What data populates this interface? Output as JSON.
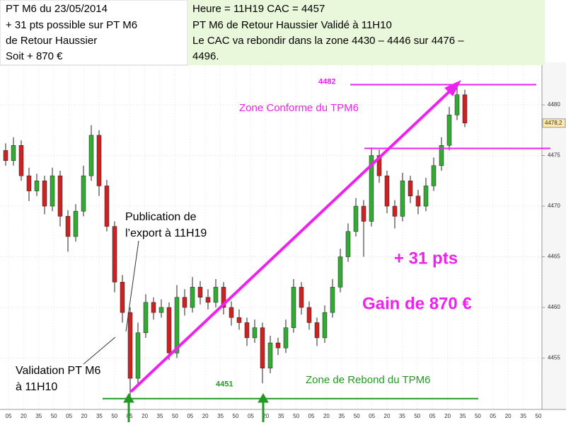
{
  "header": {
    "left": [
      "PT M6 du 23/05/2014",
      "+ 31 pts possible sur PT M6",
      "de Retour Haussier",
      "Soit + 870 €"
    ],
    "right": [
      "Heure = 11H19  CAC = 4457",
      "PT M6 de Retour Haussier Validé à 11H10",
      "Le CAC va rebondir dans la zone 4430 – 4446 sur 4476 –",
      "4496."
    ]
  },
  "chart_data": {
    "type": "candlestick",
    "up_color": "#33aa33",
    "down_color": "#cc2222",
    "open": [
      4475.5,
      4474.5,
      4476,
      4473,
      4471.5,
      4472.5,
      4470,
      4473,
      4469,
      4467,
      4469.5,
      4473,
      4477,
      4472,
      4468,
      4462.5,
      4459.5,
      4453,
      4457.5,
      4460.5,
      4459.5,
      4460,
      4455.5,
      4461,
      4460,
      4462,
      4461,
      4460.5,
      4462,
      4460,
      4459,
      4458.5,
      4457,
      4458,
      4454,
      4456.5,
      4456,
      4458,
      4462,
      4460,
      4458.5,
      4457,
      4459.5,
      4462,
      4465,
      4467.5,
      4470,
      4468.5,
      4475,
      4473,
      4470,
      4469,
      4472.5,
      4471,
      4470,
      4472,
      4474,
      4476,
      4479,
      4481
    ],
    "high": [
      4476.2,
      4476.8,
      4476.5,
      4473.8,
      4473.2,
      4473,
      4473.8,
      4473.5,
      4469.6,
      4470.2,
      4474,
      4478,
      4477.5,
      4472.6,
      4468.5,
      4463.2,
      4460,
      4458.5,
      4461.3,
      4461,
      4460.8,
      4460.5,
      4462.2,
      4461.8,
      4463,
      4462.6,
      4461.8,
      4462.8,
      4462.5,
      4460.6,
      4459.8,
      4459,
      4458.8,
      4458.5,
      4457.2,
      4457,
      4458.8,
      4462.8,
      4462.5,
      4460.6,
      4459,
      4460.2,
      4462.8,
      4465.8,
      4468.3,
      4470.8,
      4470.6,
      4475.8,
      4475.6,
      4473.5,
      4470.6,
      4473.3,
      4473,
      4471.6,
      4472.8,
      4474.8,
      4476.8,
      4479.8,
      4481.8,
      4481.5
    ],
    "low": [
      4474,
      4474,
      4472.5,
      4470.5,
      4471,
      4469.2,
      4469.5,
      4468,
      4465.5,
      4466.5,
      4469,
      4472.5,
      4471,
      4467.5,
      4461.5,
      4458.5,
      4451.2,
      4452.5,
      4457,
      4458.8,
      4459,
      4454.8,
      4455,
      4459.2,
      4459.5,
      4460.3,
      4459.8,
      4460,
      4459.3,
      4458.2,
      4457.8,
      4456.2,
      4456.5,
      4452.5,
      4453.5,
      4455.3,
      4455.5,
      4457.5,
      4459.3,
      4457.8,
      4456.2,
      4456.5,
      4459,
      4461.5,
      4464.5,
      4467,
      4465,
      4468,
      4472.3,
      4469.3,
      4467.8,
      4468.5,
      4470.3,
      4469.2,
      4469.5,
      4471.5,
      4473.5,
      4475.5,
      4478.5,
      4477.8
    ],
    "close": [
      4474.5,
      4476,
      4473,
      4471.5,
      4472.5,
      4470,
      4473,
      4469,
      4467,
      4469.5,
      4473,
      4477,
      4472,
      4468,
      4462.5,
      4459.5,
      4453,
      4457.5,
      4460.5,
      4459.5,
      4460,
      4455.5,
      4461,
      4460,
      4462,
      4461,
      4460.5,
      4462,
      4460,
      4459,
      4458.5,
      4457,
      4458,
      4454,
      4456.5,
      4456,
      4458,
      4462,
      4460,
      4458.5,
      4457,
      4459.5,
      4462,
      4465,
      4467.5,
      4470,
      4468.5,
      4475,
      4473,
      4470,
      4469,
      4472.5,
      4471,
      4470,
      4472,
      4474,
      4476,
      4479,
      4481,
      4478.2
    ],
    "ylim": [
      4450,
      4484.2
    ],
    "yticks": [
      4455,
      4460,
      4465,
      4470,
      4475,
      4480
    ],
    "grid": true,
    "x_labels": [
      "05",
      "20",
      "35",
      "50",
      "05",
      "20",
      "35",
      "50",
      "05",
      "20",
      "35",
      "50",
      "05",
      "20",
      "35",
      "50",
      "05",
      "20",
      "35",
      "50",
      "05",
      "20",
      "35",
      "50",
      "05",
      "20",
      "35",
      "50",
      "05",
      "20",
      "35",
      "50",
      "05",
      "20",
      "35",
      "50"
    ],
    "last_price": {
      "value": 4478.2,
      "label": "4478,2"
    },
    "levels": [
      {
        "value": 4482,
        "label": "4482",
        "color": "#ee22ee"
      },
      {
        "value": 4475.7,
        "color": "#ee22ee"
      },
      {
        "value": 4451,
        "label": "4451",
        "color": "#229922"
      }
    ],
    "annotations": {
      "zone_conforme": "Zone Conforme du TPM6",
      "pts": "+ 31 pts",
      "gain": "Gain de 870 €",
      "zone_rebond": "Zone de Rebond du TPM6",
      "publication": [
        "Publication de",
        "l’export à 11H19"
      ],
      "validation": [
        "Validation PT M6",
        "à 11H10"
      ]
    }
  }
}
